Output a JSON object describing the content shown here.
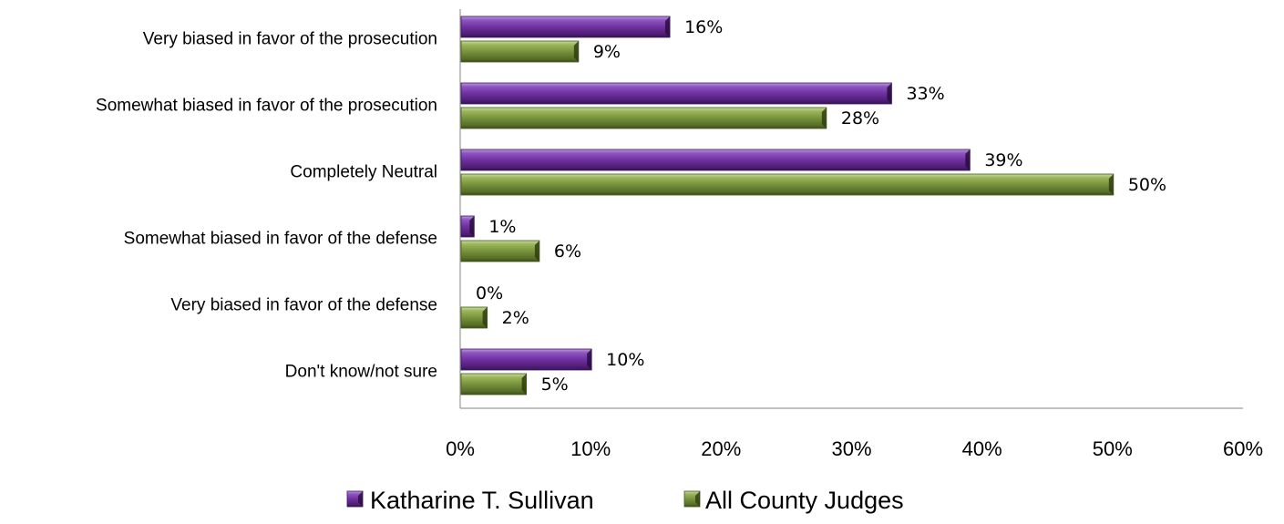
{
  "chart_data": {
    "type": "bar",
    "orientation": "horizontal",
    "categories": [
      "Very biased in favor of the prosecution",
      "Somewhat biased in favor of the prosecution",
      "Completely Neutral",
      "Somewhat biased in favor of the defense",
      "Very biased in favor of the defense",
      "Don't know/not sure"
    ],
    "series": [
      {
        "name": "Katharine T. Sullivan",
        "color": "#7030A0",
        "values": [
          16,
          33,
          39,
          1,
          0,
          10
        ],
        "labels": [
          "16%",
          "33%",
          "39%",
          "1%",
          "0%",
          "10%"
        ]
      },
      {
        "name": "All County Judges",
        "color": "#77933C",
        "values": [
          9,
          28,
          50,
          6,
          2,
          5
        ],
        "labels": [
          "9%",
          "28%",
          "50%",
          "6%",
          "2%",
          "5%"
        ]
      }
    ],
    "xlim": [
      0,
      60
    ],
    "x_ticks": [
      "0%",
      "10%",
      "20%",
      "30%",
      "40%",
      "50%",
      "60%"
    ],
    "grid": false,
    "legend_position": "bottom",
    "title": "",
    "xlabel": "",
    "ylabel": ""
  }
}
